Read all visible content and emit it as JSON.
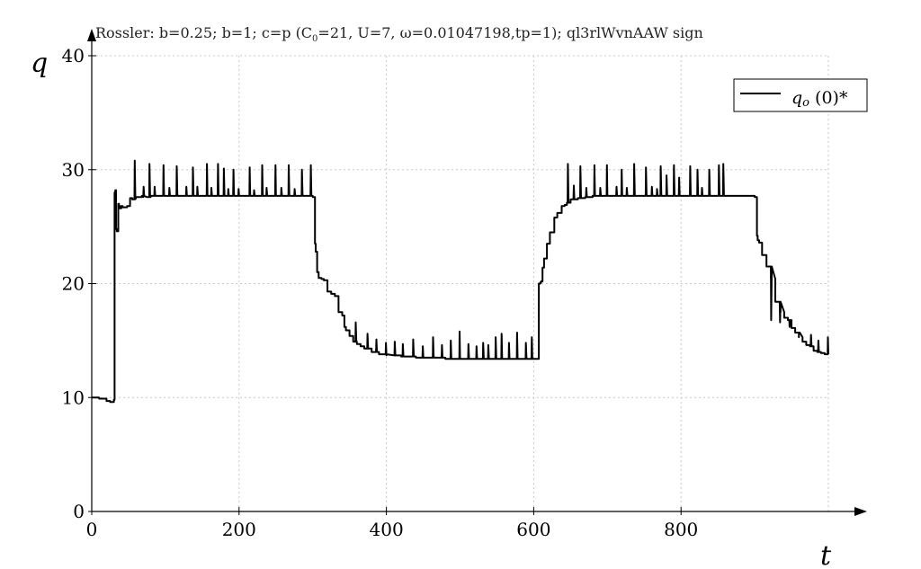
{
  "chart_data": {
    "type": "line",
    "title": "Rossler: b=0.25; b=1; c=p (C",
    "title_sub": "0",
    "title_rest": "=21, U=7, ω=0.01047198,tp=1); ql3rlWvnAAW sign",
    "xlabel": "t",
    "ylabel": "q",
    "xlim": [
      0,
      1000
    ],
    "ylim": [
      0,
      40
    ],
    "xticks": [
      0,
      200,
      400,
      600,
      800
    ],
    "yticks": [
      0,
      10,
      20,
      30,
      40
    ],
    "legend": {
      "position": "top-right",
      "label_main": "q",
      "label_sub": "o",
      "label_rest": " (0)*"
    },
    "series": [
      {
        "name": "qo (0)*",
        "x": [
          0,
          10,
          20,
          25,
          30,
          31,
          32,
          33,
          34,
          35,
          36,
          37,
          38,
          39,
          40,
          42,
          45,
          48,
          52,
          55,
          58,
          60,
          62,
          66,
          68,
          70,
          75,
          80,
          90,
          100,
          120,
          150,
          200,
          250,
          300,
          302,
          303,
          304,
          306,
          308,
          312,
          315,
          320,
          325,
          330,
          335,
          340,
          343,
          345,
          350,
          355,
          360,
          365,
          370,
          380,
          390,
          400,
          420,
          440,
          460,
          480,
          500,
          520,
          540,
          560,
          580,
          600,
          605,
          607,
          609,
          610,
          612,
          614,
          618,
          622,
          628,
          632,
          638,
          642,
          645,
          650,
          660,
          670,
          680,
          700,
          750,
          800,
          850,
          890,
          900,
          902,
          903,
          904,
          906,
          910,
          916,
          922,
          928,
          935,
          940,
          945,
          950,
          955,
          960,
          965,
          970,
          975,
          980,
          985,
          990,
          995,
          1000
        ],
        "y": [
          10,
          9.9,
          9.7,
          9.6,
          9.8,
          28,
          28.2,
          24.8,
          24.6,
          24.6,
          27,
          26.8,
          26.6,
          26.6,
          26.8,
          26.7,
          26.7,
          26.8,
          27.5,
          27.4,
          27.5,
          27.6,
          27.6,
          27.6,
          27.7,
          27.6,
          27.6,
          27.7,
          27.7,
          27.7,
          27.7,
          27.7,
          27.7,
          27.7,
          27.6,
          27.6,
          23.5,
          22.8,
          21,
          20.5,
          20.4,
          20.3,
          19.3,
          19.1,
          18.9,
          17.5,
          17.2,
          16.2,
          15.9,
          15.4,
          14.9,
          14.7,
          14.5,
          14.3,
          14.0,
          13.8,
          13.7,
          13.6,
          13.5,
          13.5,
          13.4,
          13.4,
          13.4,
          13.4,
          13.4,
          13.4,
          13.4,
          13.4,
          20,
          20.1,
          20.2,
          21.4,
          22.2,
          23.5,
          24.5,
          25.8,
          26.2,
          26.8,
          26.9,
          27.1,
          27.4,
          27.5,
          27.6,
          27.7,
          27.7,
          27.7,
          27.7,
          27.7,
          27.7,
          27.6,
          27.6,
          24.2,
          23.8,
          23.6,
          22.5,
          21.5,
          20.4,
          18.4,
          17.5,
          17.0,
          16.8,
          16.1,
          15.7,
          15.3,
          14.9,
          14.6,
          14.5,
          14.1,
          14.0,
          13.9,
          13.8,
          13.8
        ]
      }
    ],
    "spikes": [
      {
        "x": 58,
        "peak": 30.8
      },
      {
        "x": 70,
        "peak": 28.5
      },
      {
        "x": 78,
        "peak": 30.5
      },
      {
        "x": 85,
        "peak": 28.5
      },
      {
        "x": 97,
        "peak": 30.4
      },
      {
        "x": 105,
        "peak": 28.4
      },
      {
        "x": 115,
        "peak": 30.3
      },
      {
        "x": 128,
        "peak": 28.5
      },
      {
        "x": 137,
        "peak": 30.2
      },
      {
        "x": 143,
        "peak": 28.5
      },
      {
        "x": 156,
        "peak": 30.5
      },
      {
        "x": 162,
        "peak": 28.4
      },
      {
        "x": 171,
        "peak": 30.5
      },
      {
        "x": 179,
        "peak": 30.1
      },
      {
        "x": 185,
        "peak": 28.3
      },
      {
        "x": 192,
        "peak": 30.0
      },
      {
        "x": 199,
        "peak": 28.3
      },
      {
        "x": 214,
        "peak": 30.2
      },
      {
        "x": 220,
        "peak": 28.2
      },
      {
        "x": 231,
        "peak": 30.4
      },
      {
        "x": 237,
        "peak": 28.4
      },
      {
        "x": 249,
        "peak": 30.4
      },
      {
        "x": 257,
        "peak": 28.4
      },
      {
        "x": 267,
        "peak": 30.4
      },
      {
        "x": 275,
        "peak": 28.3
      },
      {
        "x": 285,
        "peak": 30.0
      },
      {
        "x": 297,
        "peak": 30.4
      },
      {
        "x": 358,
        "peak": 16.6
      },
      {
        "x": 374,
        "peak": 15.6
      },
      {
        "x": 386,
        "peak": 15.1
      },
      {
        "x": 399,
        "peak": 14.8
      },
      {
        "x": 411,
        "peak": 14.9
      },
      {
        "x": 422,
        "peak": 14.7
      },
      {
        "x": 436,
        "peak": 15.1
      },
      {
        "x": 449,
        "peak": 14.5
      },
      {
        "x": 463,
        "peak": 15.3
      },
      {
        "x": 475,
        "peak": 14.6
      },
      {
        "x": 487,
        "peak": 15.0
      },
      {
        "x": 499,
        "peak": 15.8
      },
      {
        "x": 511,
        "peak": 14.7
      },
      {
        "x": 522,
        "peak": 14.5
      },
      {
        "x": 531,
        "peak": 14.8
      },
      {
        "x": 538,
        "peak": 14.6
      },
      {
        "x": 548,
        "peak": 15.3
      },
      {
        "x": 556,
        "peak": 15.6
      },
      {
        "x": 566,
        "peak": 14.8
      },
      {
        "x": 577,
        "peak": 15.7
      },
      {
        "x": 589,
        "peak": 14.8
      },
      {
        "x": 597,
        "peak": 15.3
      },
      {
        "x": 646,
        "peak": 30.5
      },
      {
        "x": 654,
        "peak": 28.6
      },
      {
        "x": 663,
        "peak": 30.3
      },
      {
        "x": 671,
        "peak": 28.4
      },
      {
        "x": 682,
        "peak": 30.4
      },
      {
        "x": 690,
        "peak": 28.4
      },
      {
        "x": 699,
        "peak": 30.4
      },
      {
        "x": 712,
        "peak": 28.5
      },
      {
        "x": 719,
        "peak": 30.0
      },
      {
        "x": 726,
        "peak": 28.4
      },
      {
        "x": 736,
        "peak": 30.5
      },
      {
        "x": 752,
        "peak": 30.2
      },
      {
        "x": 760,
        "peak": 28.5
      },
      {
        "x": 767,
        "peak": 28.3
      },
      {
        "x": 772,
        "peak": 30.3
      },
      {
        "x": 780,
        "peak": 29.5
      },
      {
        "x": 790,
        "peak": 30.4
      },
      {
        "x": 797,
        "peak": 29.3
      },
      {
        "x": 812,
        "peak": 30.3
      },
      {
        "x": 822,
        "peak": 30.0
      },
      {
        "x": 828,
        "peak": 28.4
      },
      {
        "x": 838,
        "peak": 30.0
      },
      {
        "x": 851,
        "peak": 30.4
      },
      {
        "x": 857,
        "peak": 30.5
      },
      {
        "x": 922,
        "peak": 16.8
      },
      {
        "x": 934,
        "peak": 16.6
      },
      {
        "x": 947,
        "peak": 16.2
      },
      {
        "x": 960,
        "peak": 15.7
      },
      {
        "x": 976,
        "peak": 15.5
      },
      {
        "x": 986,
        "peak": 15.0
      },
      {
        "x": 999,
        "peak": 15.3
      }
    ]
  }
}
